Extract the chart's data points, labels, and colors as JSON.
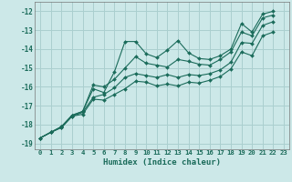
{
  "xlabel": "Humidex (Indice chaleur)",
  "bg_color": "#cce8e8",
  "grid_color": "#aacfcf",
  "line_color": "#1a6b5a",
  "xlim": [
    -0.5,
    23.5
  ],
  "ylim": [
    -19.3,
    -11.5
  ],
  "xticks": [
    0,
    1,
    2,
    3,
    4,
    5,
    6,
    7,
    8,
    9,
    10,
    11,
    12,
    13,
    14,
    15,
    16,
    17,
    18,
    19,
    20,
    21,
    22,
    23
  ],
  "yticks": [
    -19,
    -18,
    -17,
    -16,
    -15,
    -14,
    -13,
    -12
  ],
  "series": [
    {
      "x": [
        0,
        1,
        2,
        3,
        4,
        5,
        6,
        7,
        8,
        9,
        10,
        11,
        12,
        13,
        14,
        15,
        16,
        17,
        18,
        19,
        20,
        21,
        22
      ],
      "y": [
        -18.7,
        -18.4,
        -18.1,
        -17.5,
        -17.3,
        -16.1,
        -16.3,
        -15.2,
        -13.6,
        -13.6,
        -14.25,
        -14.45,
        -14.05,
        -13.55,
        -14.2,
        -14.5,
        -14.55,
        -14.35,
        -14.0,
        -12.65,
        -13.1,
        -12.15,
        -12.0
      ]
    },
    {
      "x": [
        0,
        1,
        2,
        3,
        4,
        5,
        6,
        7,
        8,
        9,
        10,
        11,
        12,
        13,
        14,
        15,
        16,
        17,
        18,
        19,
        20,
        21,
        22
      ],
      "y": [
        -18.7,
        -18.4,
        -18.1,
        -17.5,
        -17.3,
        -15.9,
        -16.0,
        -15.6,
        -15.0,
        -14.4,
        -14.75,
        -14.85,
        -14.95,
        -14.55,
        -14.65,
        -14.8,
        -14.85,
        -14.55,
        -14.15,
        -13.1,
        -13.3,
        -12.35,
        -12.2
      ]
    },
    {
      "x": [
        0,
        1,
        2,
        3,
        4,
        5,
        6,
        7,
        8,
        9,
        10,
        11,
        12,
        13,
        14,
        15,
        16,
        17,
        18,
        19,
        20,
        21,
        22
      ],
      "y": [
        -18.7,
        -18.4,
        -18.15,
        -17.55,
        -17.35,
        -16.55,
        -16.4,
        -16.05,
        -15.5,
        -15.3,
        -15.4,
        -15.5,
        -15.35,
        -15.5,
        -15.35,
        -15.4,
        -15.3,
        -15.1,
        -14.7,
        -13.65,
        -13.7,
        -12.75,
        -12.55
      ]
    },
    {
      "x": [
        0,
        1,
        2,
        3,
        4,
        5,
        6,
        7,
        8,
        9,
        10,
        11,
        12,
        13,
        14,
        15,
        16,
        17,
        18,
        19,
        20,
        21,
        22
      ],
      "y": [
        -18.7,
        -18.4,
        -18.15,
        -17.55,
        -17.45,
        -16.65,
        -16.7,
        -16.4,
        -16.1,
        -15.7,
        -15.75,
        -15.95,
        -15.85,
        -15.95,
        -15.75,
        -15.8,
        -15.65,
        -15.45,
        -15.05,
        -14.15,
        -14.35,
        -13.3,
        -13.1
      ]
    }
  ]
}
